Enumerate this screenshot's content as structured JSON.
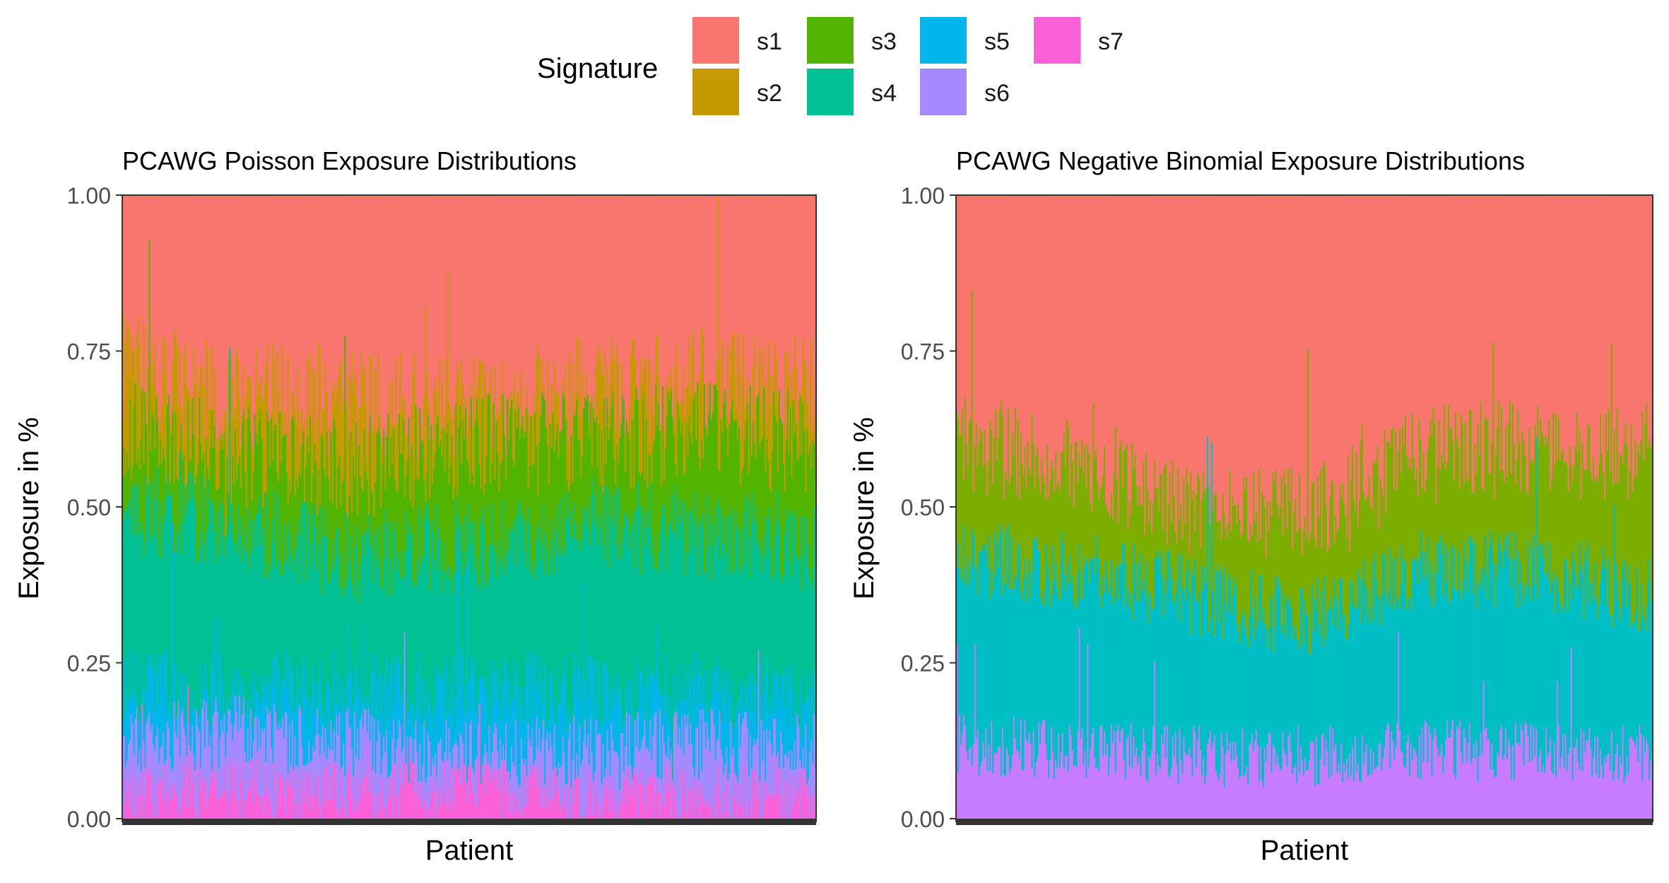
{
  "legend": {
    "title": "Signature",
    "items": [
      {
        "key": "s1",
        "label": "s1",
        "color": "#F8766D"
      },
      {
        "key": "s2",
        "label": "s2",
        "color": "#C49A00"
      },
      {
        "key": "s3",
        "label": "s3",
        "color": "#53B400"
      },
      {
        "key": "s4",
        "label": "s4",
        "color": "#00C094"
      },
      {
        "key": "s5",
        "label": "s5",
        "color": "#00B6EB"
      },
      {
        "key": "s6",
        "label": "s6",
        "color": "#A58AFF"
      },
      {
        "key": "s7",
        "label": "s7",
        "color": "#FB61D7"
      }
    ]
  },
  "chart_data": [
    {
      "type": "bar",
      "stacked": true,
      "title": "PCAWG Poisson Exposure Distributions",
      "xlabel": "Patient",
      "ylabel": "Exposure in %",
      "ylim": [
        0,
        1
      ],
      "yticks": [
        "0.00",
        "0.25",
        "0.50",
        "0.75",
        "1.00"
      ],
      "n_patients": 500,
      "mean_composition": {
        "s7": 0.04,
        "s6": 0.07,
        "s5": 0.1,
        "s4": 0.24,
        "s3": 0.14,
        "s2": 0.07,
        "s1": 0.34
      },
      "series": [
        {
          "name": "s7",
          "color": "#FB61D7",
          "cumulative_top_profile": [
            0.03,
            0.05,
            0.04,
            0.05,
            0.03,
            0.04,
            0.03
          ]
        },
        {
          "name": "s6",
          "color": "#A58AFF",
          "cumulative_top_profile": [
            0.12,
            0.14,
            0.12,
            0.1,
            0.11,
            0.12,
            0.11
          ]
        },
        {
          "name": "s5",
          "color": "#00B6EB",
          "cumulative_top_profile": [
            0.22,
            0.21,
            0.2,
            0.21,
            0.2,
            0.2,
            0.19
          ]
        },
        {
          "name": "s4",
          "color": "#00C094",
          "cumulative_top_profile": [
            0.5,
            0.47,
            0.42,
            0.44,
            0.47,
            0.46,
            0.44
          ]
        },
        {
          "name": "s3",
          "color": "#53B400",
          "cumulative_top_profile": [
            0.62,
            0.58,
            0.56,
            0.6,
            0.6,
            0.62,
            0.6
          ]
        },
        {
          "name": "s2",
          "color": "#C49A00",
          "cumulative_top_profile": [
            0.72,
            0.68,
            0.67,
            0.66,
            0.68,
            0.7,
            0.68
          ]
        },
        {
          "name": "s1",
          "color": "#F8766D",
          "cumulative_top_profile": [
            1.0,
            1.0,
            1.0,
            1.0,
            1.0,
            1.0,
            1.0
          ]
        }
      ]
    },
    {
      "type": "bar",
      "stacked": true,
      "title": "PCAWG Negative Binomial Exposure Distributions",
      "xlabel": "Patient",
      "ylabel": "Exposure in %",
      "ylim": [
        0,
        1
      ],
      "yticks": [
        "0.00",
        "0.25",
        "0.50",
        "0.75",
        "1.00"
      ],
      "n_patients": 500,
      "mean_composition": {
        "s6": 0.11,
        "s5": 0.28,
        "s3": 0.19,
        "s1": 0.42
      },
      "series": [
        {
          "name": "s6",
          "color": "#C77CFF",
          "cumulative_top_profile": [
            0.12,
            0.11,
            0.1,
            0.1,
            0.11,
            0.11,
            0.1
          ]
        },
        {
          "name": "s5",
          "color": "#00BFC4",
          "cumulative_top_profile": [
            0.42,
            0.4,
            0.36,
            0.32,
            0.4,
            0.4,
            0.36
          ]
        },
        {
          "name": "s3",
          "color": "#7CAE00",
          "cumulative_top_profile": [
            0.6,
            0.58,
            0.5,
            0.48,
            0.58,
            0.6,
            0.58
          ]
        },
        {
          "name": "s1",
          "color": "#F8766D",
          "cumulative_top_profile": [
            1.0,
            1.0,
            1.0,
            1.0,
            1.0,
            1.0,
            1.0
          ]
        }
      ]
    }
  ]
}
